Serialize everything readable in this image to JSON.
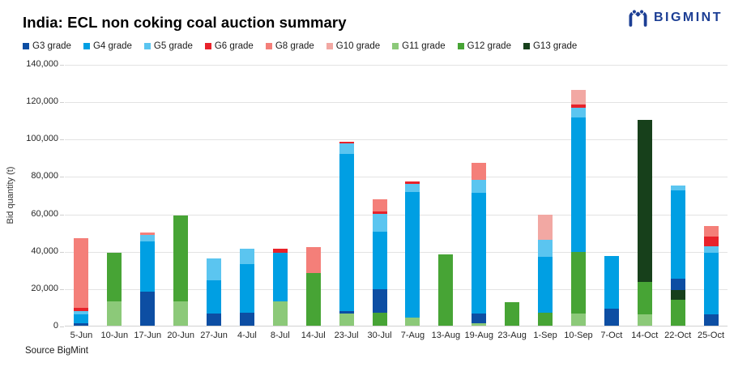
{
  "header": {
    "title": "India: ECL non coking coal auction summary",
    "logo_text": "BIGMINT",
    "logo_color": "#1c3e94"
  },
  "footer": {
    "source": "Source BigMint"
  },
  "chart_data": {
    "type": "bar",
    "stacked": true,
    "title": "India: ECL non coking coal auction summary",
    "xlabel": "",
    "ylabel": "Bid quantity (t)",
    "ylim": [
      0,
      140000
    ],
    "ytick_step": 20000,
    "grid": true,
    "legend_position": "top",
    "colors": {
      "G3": "#0d4ea3",
      "G4": "#009fe3",
      "G5": "#5bc5f0",
      "G6": "#e8222a",
      "G8": "#f47f79",
      "G10": "#f2a8a3",
      "G11": "#8cc979",
      "G12": "#47a435",
      "G13": "#17401b"
    },
    "legend": [
      {
        "grade": "G3",
        "label": "G3 grade"
      },
      {
        "grade": "G4",
        "label": "G4 grade"
      },
      {
        "grade": "G5",
        "label": "G5 grade"
      },
      {
        "grade": "G6",
        "label": "G6 grade"
      },
      {
        "grade": "G8",
        "label": "G8 grade"
      },
      {
        "grade": "G10",
        "label": "G10 grade"
      },
      {
        "grade": "G11",
        "label": "G11 grade"
      },
      {
        "grade": "G12",
        "label": "G12 grade"
      },
      {
        "grade": "G13",
        "label": "G13 grade"
      }
    ],
    "categories": [
      "5-Jun",
      "10-Jun",
      "17-Jun",
      "20-Jun",
      "27-Jun",
      "4-Jul",
      "8-Jul",
      "14-Jul",
      "23-Jul",
      "30-Jul",
      "7-Aug",
      "13-Aug",
      "19-Aug",
      "23-Aug",
      "1-Sep",
      "10-Sep",
      "7-Oct",
      "14-Oct",
      "22-Oct",
      "25-Oct"
    ],
    "bars": [
      {
        "date": "5-Jun",
        "total": 47000,
        "segments": [
          {
            "grade": "G3",
            "value": 1500
          },
          {
            "grade": "G4",
            "value": 4500
          },
          {
            "grade": "G5",
            "value": 2000
          },
          {
            "grade": "G6",
            "value": 1500
          },
          {
            "grade": "G8",
            "value": 37500
          }
        ]
      },
      {
        "date": "10-Jun",
        "total": 39000,
        "segments": [
          {
            "grade": "G11",
            "value": 13000
          },
          {
            "grade": "G12",
            "value": 26000
          }
        ]
      },
      {
        "date": "17-Jun",
        "total": 50000,
        "segments": [
          {
            "grade": "G3",
            "value": 18000
          },
          {
            "grade": "G4",
            "value": 27000
          },
          {
            "grade": "G5",
            "value": 3500
          },
          {
            "grade": "G8",
            "value": 1500
          }
        ]
      },
      {
        "date": "20-Jun",
        "total": 59000,
        "segments": [
          {
            "grade": "G11",
            "value": 13000
          },
          {
            "grade": "G12",
            "value": 46000
          }
        ]
      },
      {
        "date": "27-Jun",
        "total": 36000,
        "segments": [
          {
            "grade": "G3",
            "value": 6500
          },
          {
            "grade": "G4",
            "value": 18000
          },
          {
            "grade": "G5",
            "value": 11500
          }
        ]
      },
      {
        "date": "4-Jul",
        "total": 41000,
        "segments": [
          {
            "grade": "G3",
            "value": 7000
          },
          {
            "grade": "G4",
            "value": 26000
          },
          {
            "grade": "G5",
            "value": 8000
          }
        ]
      },
      {
        "date": "8-Jul",
        "total": 41000,
        "segments": [
          {
            "grade": "G11",
            "value": 13000
          },
          {
            "grade": "G4",
            "value": 26000
          },
          {
            "grade": "G6",
            "value": 2000
          }
        ]
      },
      {
        "date": "14-Jul",
        "total": 42000,
        "segments": [
          {
            "grade": "G12",
            "value": 28000
          },
          {
            "grade": "G8",
            "value": 14000
          }
        ]
      },
      {
        "date": "23-Jul",
        "total": 98500,
        "segments": [
          {
            "grade": "G11",
            "value": 6500
          },
          {
            "grade": "G3",
            "value": 1500
          },
          {
            "grade": "G4",
            "value": 84000
          },
          {
            "grade": "G5",
            "value": 5500
          },
          {
            "grade": "G6",
            "value": 1000
          }
        ]
      },
      {
        "date": "30-Jul",
        "total": 67500,
        "segments": [
          {
            "grade": "G12",
            "value": 7000
          },
          {
            "grade": "G3",
            "value": 12500
          },
          {
            "grade": "G4",
            "value": 31000
          },
          {
            "grade": "G5",
            "value": 9500
          },
          {
            "grade": "G6",
            "value": 1000
          },
          {
            "grade": "G8",
            "value": 6500
          }
        ]
      },
      {
        "date": "7-Aug",
        "total": 77000,
        "segments": [
          {
            "grade": "G11",
            "value": 4500
          },
          {
            "grade": "G4",
            "value": 67000
          },
          {
            "grade": "G5",
            "value": 4500
          },
          {
            "grade": "G6",
            "value": 1000
          }
        ]
      },
      {
        "date": "13-Aug",
        "total": 38000,
        "segments": [
          {
            "grade": "G12",
            "value": 38000
          }
        ]
      },
      {
        "date": "19-Aug",
        "total": 87000,
        "segments": [
          {
            "grade": "G11",
            "value": 1500
          },
          {
            "grade": "G3",
            "value": 5000
          },
          {
            "grade": "G4",
            "value": 64500
          },
          {
            "grade": "G5",
            "value": 7000
          },
          {
            "grade": "G8",
            "value": 9000
          }
        ]
      },
      {
        "date": "23-Aug",
        "total": 12500,
        "segments": [
          {
            "grade": "G12",
            "value": 12500
          }
        ]
      },
      {
        "date": "1-Sep",
        "total": 59500,
        "segments": [
          {
            "grade": "G12",
            "value": 7000
          },
          {
            "grade": "G4",
            "value": 30000
          },
          {
            "grade": "G5",
            "value": 9000
          },
          {
            "grade": "G10",
            "value": 13500
          }
        ]
      },
      {
        "date": "10-Sep",
        "total": 126000,
        "segments": [
          {
            "grade": "G11",
            "value": 6500
          },
          {
            "grade": "G12",
            "value": 33000
          },
          {
            "grade": "G4",
            "value": 72000
          },
          {
            "grade": "G5",
            "value": 5000
          },
          {
            "grade": "G6",
            "value": 2000
          },
          {
            "grade": "G10",
            "value": 7500
          }
        ]
      },
      {
        "date": "7-Oct",
        "total": 37500,
        "segments": [
          {
            "grade": "G3",
            "value": 9000
          },
          {
            "grade": "G4",
            "value": 28500
          }
        ]
      },
      {
        "date": "14-Oct",
        "total": 110000,
        "segments": [
          {
            "grade": "G11",
            "value": 6000
          },
          {
            "grade": "G12",
            "value": 17500
          },
          {
            "grade": "G13",
            "value": 86500
          }
        ]
      },
      {
        "date": "22-Oct",
        "total": 75000,
        "segments": [
          {
            "grade": "G12",
            "value": 14000
          },
          {
            "grade": "G13",
            "value": 5000
          },
          {
            "grade": "G3",
            "value": 6000
          },
          {
            "grade": "G4",
            "value": 47500
          },
          {
            "grade": "G5",
            "value": 2500
          }
        ]
      },
      {
        "date": "25-Oct",
        "total": 53500,
        "segments": [
          {
            "grade": "G3",
            "value": 6000
          },
          {
            "grade": "G4",
            "value": 33000
          },
          {
            "grade": "G5",
            "value": 3500
          },
          {
            "grade": "G6",
            "value": 5000
          },
          {
            "grade": "G8",
            "value": 6000
          }
        ]
      }
    ]
  }
}
